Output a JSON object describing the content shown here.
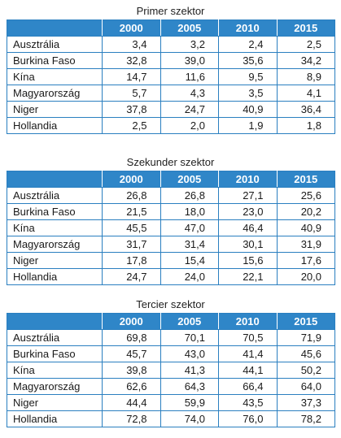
{
  "years": [
    "2000",
    "2005",
    "2010",
    "2015"
  ],
  "sections": [
    {
      "title": "Primer szektor",
      "rows": [
        {
          "country": "Ausztrália",
          "values": [
            "3,4",
            "3,2",
            "2,4",
            "2,5"
          ]
        },
        {
          "country": "Burkina Faso",
          "values": [
            "32,8",
            "39,0",
            "35,6",
            "34,2"
          ]
        },
        {
          "country": "Kína",
          "values": [
            "14,7",
            "11,6",
            "9,5",
            "8,9"
          ]
        },
        {
          "country": "Magyarország",
          "values": [
            "5,7",
            "4,3",
            "3,5",
            "4,1"
          ]
        },
        {
          "country": "Niger",
          "values": [
            "37,8",
            "24,7",
            "40,9",
            "36,4"
          ]
        },
        {
          "country": "Hollandia",
          "values": [
            "2,5",
            "2,0",
            "1,9",
            "1,8"
          ]
        }
      ]
    },
    {
      "title": "Szekunder szektor",
      "rows": [
        {
          "country": "Ausztrália",
          "values": [
            "26,8",
            "26,8",
            "27,1",
            "25,6"
          ]
        },
        {
          "country": "Burkina Faso",
          "values": [
            "21,5",
            "18,0",
            "23,0",
            "20,2"
          ]
        },
        {
          "country": "Kína",
          "values": [
            "45,5",
            "47,0",
            "46,4",
            "40,9"
          ]
        },
        {
          "country": "Magyarország",
          "values": [
            "31,7",
            "31,4",
            "30,1",
            "31,9"
          ]
        },
        {
          "country": "Niger",
          "values": [
            "17,8",
            "15,4",
            "15,6",
            "17,6"
          ]
        },
        {
          "country": "Hollandia",
          "values": [
            "24,7",
            "24,0",
            "22,1",
            "20,0"
          ]
        }
      ]
    },
    {
      "title": "Tercier szektor",
      "rows": [
        {
          "country": "Ausztrália",
          "values": [
            "69,8",
            "70,1",
            "70,5",
            "71,9"
          ]
        },
        {
          "country": "Burkina Faso",
          "values": [
            "45,7",
            "43,0",
            "41,4",
            "45,6"
          ]
        },
        {
          "country": "Kína",
          "values": [
            "39,8",
            "41,3",
            "44,1",
            "50,2"
          ]
        },
        {
          "country": "Magyarország",
          "values": [
            "62,6",
            "64,3",
            "66,4",
            "64,0"
          ]
        },
        {
          "country": "Niger",
          "values": [
            "44,4",
            "59,9",
            "43,5",
            "37,3"
          ]
        },
        {
          "country": "Hollandia",
          "values": [
            "72,8",
            "74,0",
            "76,0",
            "78,2"
          ]
        }
      ]
    }
  ]
}
